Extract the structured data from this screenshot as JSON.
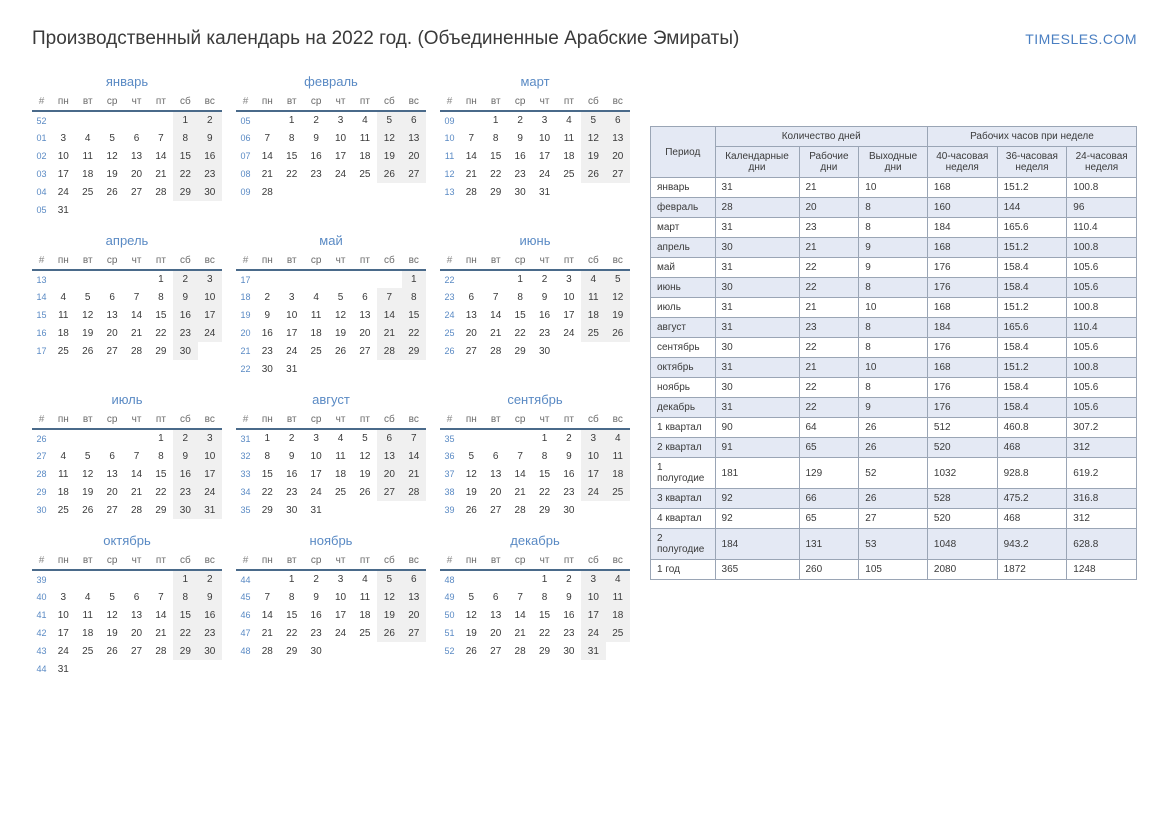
{
  "header": {
    "title": "Производственный календарь на 2022 год. (Объединенные Арабские Эмираты)",
    "brand": "TIMESLES.COM"
  },
  "dow": [
    "#",
    "пн",
    "вт",
    "ср",
    "чт",
    "пт",
    "сб",
    "вс"
  ],
  "months": [
    {
      "name": "январь",
      "start": 5,
      "days": 31,
      "wk": 52
    },
    {
      "name": "февраль",
      "start": 1,
      "days": 28,
      "wk": 5
    },
    {
      "name": "март",
      "start": 1,
      "days": 31,
      "wk": 9
    },
    {
      "name": "апрель",
      "start": 4,
      "days": 30,
      "wk": 13
    },
    {
      "name": "май",
      "start": 6,
      "days": 31,
      "wk": 17
    },
    {
      "name": "июнь",
      "start": 2,
      "days": 30,
      "wk": 22
    },
    {
      "name": "июль",
      "start": 4,
      "days": 31,
      "wk": 26
    },
    {
      "name": "август",
      "start": 0,
      "days": 31,
      "wk": 31
    },
    {
      "name": "сентябрь",
      "start": 3,
      "days": 30,
      "wk": 35
    },
    {
      "name": "октябрь",
      "start": 5,
      "days": 31,
      "wk": 39
    },
    {
      "name": "ноябрь",
      "start": 1,
      "days": 30,
      "wk": 44
    },
    {
      "name": "декабрь",
      "start": 3,
      "days": 31,
      "wk": 48
    }
  ],
  "summary": {
    "group_headers": [
      "Период",
      "Количество дней",
      "Рабочих часов при неделе"
    ],
    "sub_headers": [
      "Календарные дни",
      "Рабочие дни",
      "Выходные дни",
      "40-часовая неделя",
      "36-часовая неделя",
      "24-часовая неделя"
    ],
    "rows": [
      {
        "label": "январь",
        "v": [
          "31",
          "21",
          "10",
          "168",
          "151.2",
          "100.8"
        ],
        "alt": false
      },
      {
        "label": "февраль",
        "v": [
          "28",
          "20",
          "8",
          "160",
          "144",
          "96"
        ],
        "alt": true
      },
      {
        "label": "март",
        "v": [
          "31",
          "23",
          "8",
          "184",
          "165.6",
          "110.4"
        ],
        "alt": false
      },
      {
        "label": "апрель",
        "v": [
          "30",
          "21",
          "9",
          "168",
          "151.2",
          "100.8"
        ],
        "alt": true
      },
      {
        "label": "май",
        "v": [
          "31",
          "22",
          "9",
          "176",
          "158.4",
          "105.6"
        ],
        "alt": false
      },
      {
        "label": "июнь",
        "v": [
          "30",
          "22",
          "8",
          "176",
          "158.4",
          "105.6"
        ],
        "alt": true
      },
      {
        "label": "июль",
        "v": [
          "31",
          "21",
          "10",
          "168",
          "151.2",
          "100.8"
        ],
        "alt": false
      },
      {
        "label": "август",
        "v": [
          "31",
          "23",
          "8",
          "184",
          "165.6",
          "110.4"
        ],
        "alt": true
      },
      {
        "label": "сентябрь",
        "v": [
          "30",
          "22",
          "8",
          "176",
          "158.4",
          "105.6"
        ],
        "alt": false
      },
      {
        "label": "октябрь",
        "v": [
          "31",
          "21",
          "10",
          "168",
          "151.2",
          "100.8"
        ],
        "alt": true
      },
      {
        "label": "ноябрь",
        "v": [
          "30",
          "22",
          "8",
          "176",
          "158.4",
          "105.6"
        ],
        "alt": false
      },
      {
        "label": "декабрь",
        "v": [
          "31",
          "22",
          "9",
          "176",
          "158.4",
          "105.6"
        ],
        "alt": true
      },
      {
        "label": "1 квартал",
        "v": [
          "90",
          "64",
          "26",
          "512",
          "460.8",
          "307.2"
        ],
        "alt": false
      },
      {
        "label": "2 квартал",
        "v": [
          "91",
          "65",
          "26",
          "520",
          "468",
          "312"
        ],
        "alt": true
      },
      {
        "label": "1 полугодие",
        "v": [
          "181",
          "129",
          "52",
          "1032",
          "928.8",
          "619.2"
        ],
        "alt": false
      },
      {
        "label": "3 квартал",
        "v": [
          "92",
          "66",
          "26",
          "528",
          "475.2",
          "316.8"
        ],
        "alt": true
      },
      {
        "label": "4 квартал",
        "v": [
          "92",
          "65",
          "27",
          "520",
          "468",
          "312"
        ],
        "alt": false
      },
      {
        "label": "2 полугодие",
        "v": [
          "184",
          "131",
          "53",
          "1048",
          "943.2",
          "628.8"
        ],
        "alt": true
      },
      {
        "label": "1 год",
        "v": [
          "365",
          "260",
          "105",
          "2080",
          "1872",
          "1248"
        ],
        "alt": false
      }
    ]
  },
  "colors": {
    "link": "#5a8ac4",
    "header_border": "#4a6a8a",
    "weekend_bg": "#f0f0f0",
    "table_border": "#9aa5b5",
    "table_header_bg": "#e4e9f4"
  }
}
